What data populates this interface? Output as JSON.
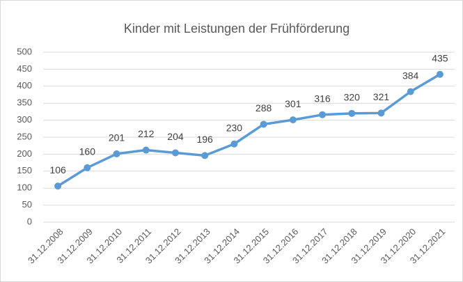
{
  "chart_data": {
    "type": "line",
    "title": "Kinder mit Leistungen der Frühförderung",
    "categories": [
      "31.12.2008",
      "31.12.2009",
      "31.12.2010",
      "31.12.2011",
      "31.12.2012",
      "31.12.2013",
      "31.12.2014",
      "31.12.2015",
      "31.12.2016",
      "31.12.2017",
      "31.12.2018",
      "31.12.2019",
      "31.12.2020",
      "31.12.2021"
    ],
    "values": [
      106,
      160,
      201,
      212,
      204,
      196,
      230,
      288,
      301,
      316,
      320,
      321,
      384,
      435
    ],
    "color": "#5b9bd5",
    "ylim": [
      0,
      500
    ],
    "yticks": [
      0,
      50,
      100,
      150,
      200,
      250,
      300,
      350,
      400,
      450,
      500
    ],
    "grid": true
  }
}
